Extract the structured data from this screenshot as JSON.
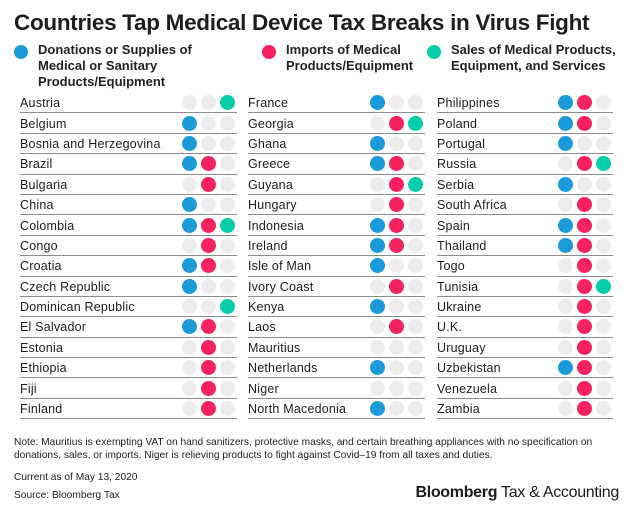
{
  "chart_data": {
    "type": "table",
    "title": "Countries Tap Medical Device Tax Breaks in Virus Fight",
    "legend": [
      {
        "key": "donations",
        "label": "Donations or Supplies of Medical or Sanitary Products/Equipment",
        "color": "#1a9ad9"
      },
      {
        "key": "imports",
        "label": "Imports of Medical Products/Equipment",
        "color": "#f5225f"
      },
      {
        "key": "sales",
        "label": "Sales of Medical Products, Equipment, and Services",
        "color": "#06cda9"
      }
    ],
    "inactive_color": "#ececec",
    "columns": [
      [
        {
          "country": "Austria",
          "donations": false,
          "imports": false,
          "sales": true
        },
        {
          "country": "Belgium",
          "donations": true,
          "imports": false,
          "sales": false
        },
        {
          "country": "Bosnia and Herzegovina",
          "donations": true,
          "imports": false,
          "sales": false
        },
        {
          "country": "Brazil",
          "donations": true,
          "imports": true,
          "sales": false
        },
        {
          "country": "Bulgaria",
          "donations": false,
          "imports": true,
          "sales": false
        },
        {
          "country": "China",
          "donations": true,
          "imports": false,
          "sales": false
        },
        {
          "country": "Colombia",
          "donations": true,
          "imports": true,
          "sales": true
        },
        {
          "country": "Congo",
          "donations": false,
          "imports": true,
          "sales": false
        },
        {
          "country": "Croatia",
          "donations": true,
          "imports": true,
          "sales": false
        },
        {
          "country": "Czech Republic",
          "donations": true,
          "imports": false,
          "sales": false
        },
        {
          "country": "Dominican Republic",
          "donations": false,
          "imports": false,
          "sales": true
        },
        {
          "country": "El Salvador",
          "donations": true,
          "imports": true,
          "sales": false
        },
        {
          "country": "Estonia",
          "donations": false,
          "imports": true,
          "sales": false
        },
        {
          "country": "Ethiopia",
          "donations": false,
          "imports": true,
          "sales": false
        },
        {
          "country": "Fiji",
          "donations": false,
          "imports": true,
          "sales": false
        },
        {
          "country": "Finland",
          "donations": false,
          "imports": true,
          "sales": false
        }
      ],
      [
        {
          "country": "France",
          "donations": true,
          "imports": false,
          "sales": false
        },
        {
          "country": "Georgia",
          "donations": false,
          "imports": true,
          "sales": true
        },
        {
          "country": "Ghana",
          "donations": true,
          "imports": false,
          "sales": false
        },
        {
          "country": "Greece",
          "donations": true,
          "imports": true,
          "sales": false
        },
        {
          "country": "Guyana",
          "donations": false,
          "imports": true,
          "sales": true
        },
        {
          "country": "Hungary",
          "donations": false,
          "imports": true,
          "sales": false
        },
        {
          "country": "Indonesia",
          "donations": true,
          "imports": true,
          "sales": false
        },
        {
          "country": "Ireland",
          "donations": true,
          "imports": true,
          "sales": false
        },
        {
          "country": "Isle of Man",
          "donations": true,
          "imports": false,
          "sales": false
        },
        {
          "country": "Ivory Coast",
          "donations": false,
          "imports": true,
          "sales": false
        },
        {
          "country": "Kenya",
          "donations": true,
          "imports": false,
          "sales": false
        },
        {
          "country": "Laos",
          "donations": false,
          "imports": true,
          "sales": false
        },
        {
          "country": "Mauritius",
          "donations": false,
          "imports": false,
          "sales": false
        },
        {
          "country": "Netherlands",
          "donations": true,
          "imports": false,
          "sales": false
        },
        {
          "country": "Niger",
          "donations": false,
          "imports": false,
          "sales": false
        },
        {
          "country": "North Macedonia",
          "donations": true,
          "imports": false,
          "sales": false
        }
      ],
      [
        {
          "country": "Philippines",
          "donations": true,
          "imports": true,
          "sales": false
        },
        {
          "country": "Poland",
          "donations": true,
          "imports": true,
          "sales": false
        },
        {
          "country": "Portugal",
          "donations": true,
          "imports": false,
          "sales": false
        },
        {
          "country": "Russia",
          "donations": false,
          "imports": true,
          "sales": true
        },
        {
          "country": "Serbia",
          "donations": true,
          "imports": false,
          "sales": false
        },
        {
          "country": "South Africa",
          "donations": false,
          "imports": true,
          "sales": false
        },
        {
          "country": "Spain",
          "donations": true,
          "imports": true,
          "sales": false
        },
        {
          "country": "Thailand",
          "donations": true,
          "imports": true,
          "sales": false
        },
        {
          "country": "Togo",
          "donations": false,
          "imports": true,
          "sales": false
        },
        {
          "country": "Tunisia",
          "donations": false,
          "imports": true,
          "sales": true
        },
        {
          "country": "Ukraine",
          "donations": false,
          "imports": true,
          "sales": false
        },
        {
          "country": "U.K.",
          "donations": false,
          "imports": true,
          "sales": false
        },
        {
          "country": "Uruguay",
          "donations": false,
          "imports": true,
          "sales": false
        },
        {
          "country": "Uzbekistan",
          "donations": true,
          "imports": true,
          "sales": false
        },
        {
          "country": "Venezuela",
          "donations": false,
          "imports": true,
          "sales": false
        },
        {
          "country": "Zambia",
          "donations": false,
          "imports": true,
          "sales": false
        }
      ]
    ]
  },
  "footer": {
    "note": "Note: Mauritius is exempting VAT on hand sanitizers, protective masks, and certain breathing appliances with no specification on donations, sales, or imports. Niger is relieving products to fight against Covid–19 from all taxes and duties.",
    "current": "Current as of May 13, 2020",
    "source": "Source: Bloomberg Tax",
    "brand_bold": "Bloomberg",
    "brand_rest": " Tax & Accounting"
  }
}
